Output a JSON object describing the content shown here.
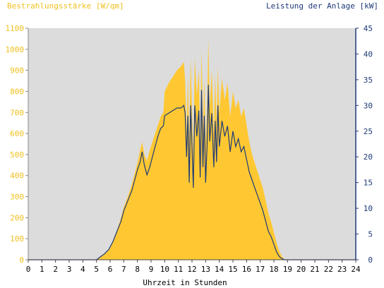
{
  "chart_data": {
    "type": "area",
    "title_left": "Bestrahlungsstärke [W/qm]",
    "title_right": "Leistung der Anlage [kW]",
    "xlabel": "Uhrzeit in Stunden",
    "x_ticks": [
      "0",
      "1",
      "2",
      "3",
      "4",
      "5",
      "6",
      "7",
      "8",
      "9",
      "10",
      "11",
      "12",
      "13",
      "14",
      "15",
      "16",
      "17",
      "18",
      "19",
      "20",
      "21",
      "22",
      "23",
      "24"
    ],
    "y_left_ticks": [
      "0",
      "100",
      "200",
      "300",
      "400",
      "500",
      "600",
      "700",
      "800",
      "900",
      "1000",
      "1100"
    ],
    "y_right_ticks": [
      "0",
      "5",
      "10",
      "15",
      "20",
      "25",
      "30",
      "35",
      "40",
      "45"
    ],
    "xlim": [
      0,
      24
    ],
    "ylim_left": [
      0,
      1100
    ],
    "ylim_right": [
      0,
      45
    ],
    "colors": {
      "background": "#dcdcdc",
      "irradiance": "#ffc832",
      "power": "#1e3a78",
      "left_axis": "#f0c020",
      "right_axis": "#1e3a78"
    },
    "series": [
      {
        "axis": "left",
        "points": [
          [
            0,
            0
          ],
          [
            5.0,
            0
          ],
          [
            5.3,
            15
          ],
          [
            5.6,
            30
          ],
          [
            5.9,
            50
          ],
          [
            6.2,
            90
          ],
          [
            6.5,
            140
          ],
          [
            6.8,
            200
          ],
          [
            7.0,
            250
          ],
          [
            7.3,
            300
          ],
          [
            7.6,
            360
          ],
          [
            7.8,
            410
          ],
          [
            8.0,
            460
          ],
          [
            8.2,
            520
          ],
          [
            8.35,
            560
          ],
          [
            8.5,
            500
          ],
          [
            8.7,
            470
          ],
          [
            8.9,
            520
          ],
          [
            9.1,
            560
          ],
          [
            9.3,
            600
          ],
          [
            9.5,
            640
          ],
          [
            9.7,
            680
          ],
          [
            9.9,
            700
          ],
          [
            10.0,
            800
          ],
          [
            10.3,
            840
          ],
          [
            10.6,
            870
          ],
          [
            10.9,
            900
          ],
          [
            11.2,
            920
          ],
          [
            11.4,
            940
          ],
          [
            11.5,
            850
          ],
          [
            11.6,
            600
          ],
          [
            11.7,
            880
          ],
          [
            11.8,
            560
          ],
          [
            11.9,
            960
          ],
          [
            12.0,
            700
          ],
          [
            12.1,
            500
          ],
          [
            12.2,
            960
          ],
          [
            12.35,
            780
          ],
          [
            12.5,
            900
          ],
          [
            12.6,
            550
          ],
          [
            12.7,
            1000
          ],
          [
            12.8,
            620
          ],
          [
            12.9,
            860
          ],
          [
            13.0,
            560
          ],
          [
            13.1,
            700
          ],
          [
            13.2,
            1050
          ],
          [
            13.3,
            720
          ],
          [
            13.45,
            900
          ],
          [
            13.6,
            600
          ],
          [
            13.7,
            880
          ],
          [
            13.8,
            640
          ],
          [
            13.9,
            920
          ],
          [
            14.0,
            700
          ],
          [
            14.2,
            860
          ],
          [
            14.4,
            760
          ],
          [
            14.6,
            840
          ],
          [
            14.8,
            680
          ],
          [
            15.0,
            800
          ],
          [
            15.2,
            720
          ],
          [
            15.4,
            760
          ],
          [
            15.6,
            680
          ],
          [
            15.8,
            720
          ],
          [
            16.0,
            640
          ],
          [
            16.2,
            560
          ],
          [
            16.4,
            500
          ],
          [
            16.6,
            460
          ],
          [
            16.8,
            420
          ],
          [
            17.0,
            380
          ],
          [
            17.2,
            340
          ],
          [
            17.4,
            280
          ],
          [
            17.6,
            220
          ],
          [
            17.8,
            180
          ],
          [
            18.0,
            130
          ],
          [
            18.2,
            80
          ],
          [
            18.4,
            40
          ],
          [
            18.6,
            15
          ],
          [
            18.8,
            0
          ],
          [
            24,
            0
          ]
        ]
      },
      {
        "axis": "right",
        "points": [
          [
            0,
            0
          ],
          [
            5.0,
            0
          ],
          [
            5.3,
            0.6
          ],
          [
            5.6,
            1.2
          ],
          [
            5.9,
            2.0
          ],
          [
            6.2,
            3.5
          ],
          [
            6.5,
            5.5
          ],
          [
            6.8,
            7.5
          ],
          [
            7.0,
            9.5
          ],
          [
            7.3,
            11.5
          ],
          [
            7.6,
            13.5
          ],
          [
            7.8,
            15.5
          ],
          [
            8.0,
            17.5
          ],
          [
            8.2,
            19.0
          ],
          [
            8.35,
            21.0
          ],
          [
            8.5,
            18.5
          ],
          [
            8.7,
            16.5
          ],
          [
            8.9,
            18.0
          ],
          [
            9.1,
            20.0
          ],
          [
            9.3,
            22.0
          ],
          [
            9.5,
            24.0
          ],
          [
            9.7,
            25.5
          ],
          [
            9.9,
            26.0
          ],
          [
            10.0,
            28.0
          ],
          [
            10.3,
            28.5
          ],
          [
            10.6,
            29.0
          ],
          [
            10.9,
            29.5
          ],
          [
            11.2,
            29.5
          ],
          [
            11.4,
            30.0
          ],
          [
            11.5,
            28.5
          ],
          [
            11.6,
            20.0
          ],
          [
            11.7,
            28.0
          ],
          [
            11.8,
            15.0
          ],
          [
            11.9,
            30.0
          ],
          [
            12.0,
            22.0
          ],
          [
            12.1,
            14.0
          ],
          [
            12.2,
            30.0
          ],
          [
            12.35,
            24.0
          ],
          [
            12.5,
            29.0
          ],
          [
            12.6,
            16.0
          ],
          [
            12.7,
            33.0
          ],
          [
            12.8,
            18.0
          ],
          [
            12.9,
            28.0
          ],
          [
            13.0,
            15.0
          ],
          [
            13.1,
            22.0
          ],
          [
            13.2,
            34.0
          ],
          [
            13.3,
            23.0
          ],
          [
            13.45,
            28.5
          ],
          [
            13.6,
            18.0
          ],
          [
            13.7,
            27.0
          ],
          [
            13.8,
            19.0
          ],
          [
            13.9,
            30.0
          ],
          [
            14.0,
            22.0
          ],
          [
            14.2,
            27.0
          ],
          [
            14.4,
            24.0
          ],
          [
            14.6,
            26.0
          ],
          [
            14.8,
            21.0
          ],
          [
            15.0,
            25.0
          ],
          [
            15.2,
            22.0
          ],
          [
            15.4,
            23.5
          ],
          [
            15.6,
            21.0
          ],
          [
            15.8,
            22.0
          ],
          [
            16.0,
            19.5
          ],
          [
            16.2,
            17.0
          ],
          [
            16.4,
            15.5
          ],
          [
            16.6,
            14.0
          ],
          [
            16.8,
            12.5
          ],
          [
            17.0,
            11.0
          ],
          [
            17.2,
            9.5
          ],
          [
            17.4,
            7.5
          ],
          [
            17.6,
            5.5
          ],
          [
            17.8,
            4.5
          ],
          [
            18.0,
            3.0
          ],
          [
            18.2,
            1.5
          ],
          [
            18.4,
            0.6
          ],
          [
            18.6,
            0.2
          ],
          [
            18.8,
            0
          ],
          [
            24,
            0
          ]
        ]
      }
    ]
  }
}
